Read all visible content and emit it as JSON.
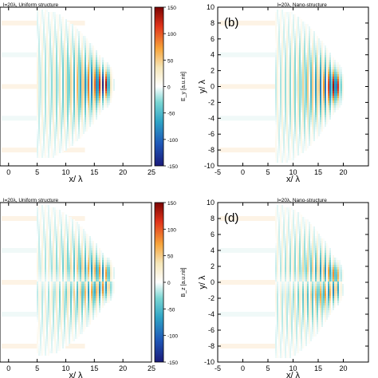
{
  "chart_data": [
    {
      "type": "heatmap",
      "panel_label": "",
      "title": "l=20λ, Uniform structure",
      "xlabel": "x/ λ",
      "ylabel": "",
      "xlim": [
        -1.5,
        25
      ],
      "ylim": [
        -10.5,
        10
      ],
      "xticks": [
        0,
        5,
        10,
        15,
        20,
        25
      ],
      "yticks": [],
      "colorbar": {
        "label": "E_y [a.u.nit]",
        "range": [
          -150,
          150
        ],
        "ticks": [
          150,
          100,
          50,
          0,
          -50,
          -100,
          -150
        ]
      },
      "field": {
        "center_x": 16.8,
        "center_y": 0,
        "wavelength": 1.0,
        "peak_abs": 150,
        "lobes": "centered"
      }
    },
    {
      "type": "heatmap",
      "panel_label": "(b)",
      "title": "l=20λ, Nano-structure",
      "xlabel": "x/ λ",
      "ylabel": "y/ λ",
      "xlim": [
        -5,
        25
      ],
      "ylim": [
        -10,
        10
      ],
      "xticks": [
        -5,
        0,
        5,
        10,
        15,
        20
      ],
      "yticks": [
        10,
        8,
        6,
        4,
        2,
        0,
        -2,
        -4,
        -6,
        -8,
        -10
      ],
      "field": {
        "center_x": 18.5,
        "center_y": 0,
        "wavelength": 1.0,
        "peak_abs": 150,
        "lobes": "centered"
      }
    },
    {
      "type": "heatmap",
      "panel_label": "",
      "title": "l=20λ, Uniform structure",
      "xlabel": "x/ λ",
      "ylabel": "",
      "xlim": [
        -1.5,
        25
      ],
      "ylim": [
        -10.5,
        10
      ],
      "xticks": [
        0,
        5,
        10,
        15,
        20,
        25
      ],
      "yticks": [],
      "colorbar": {
        "label": "B_z [a.u.nit]",
        "range": [
          -150,
          150
        ],
        "ticks": [
          150,
          100,
          50,
          0,
          -50,
          -100,
          -150
        ]
      },
      "field": {
        "center_x": 17.0,
        "center_y": 0,
        "wavelength": 1.0,
        "peak_abs": 150,
        "lobes": "split"
      }
    },
    {
      "type": "heatmap",
      "panel_label": "(d)",
      "title": "l=20λ, Nano-structure",
      "xlabel": "x/ λ",
      "ylabel": "y/ λ",
      "xlim": [
        -5,
        25
      ],
      "ylim": [
        -10,
        10
      ],
      "xticks": [
        -5,
        0,
        5,
        10,
        15,
        20
      ],
      "yticks": [
        10,
        8,
        6,
        4,
        2,
        0,
        -2,
        -4,
        -6,
        -8,
        -10
      ],
      "field": {
        "center_x": 18.5,
        "center_y": 0,
        "wavelength": 1.0,
        "peak_abs": 150,
        "lobes": "split"
      }
    }
  ]
}
